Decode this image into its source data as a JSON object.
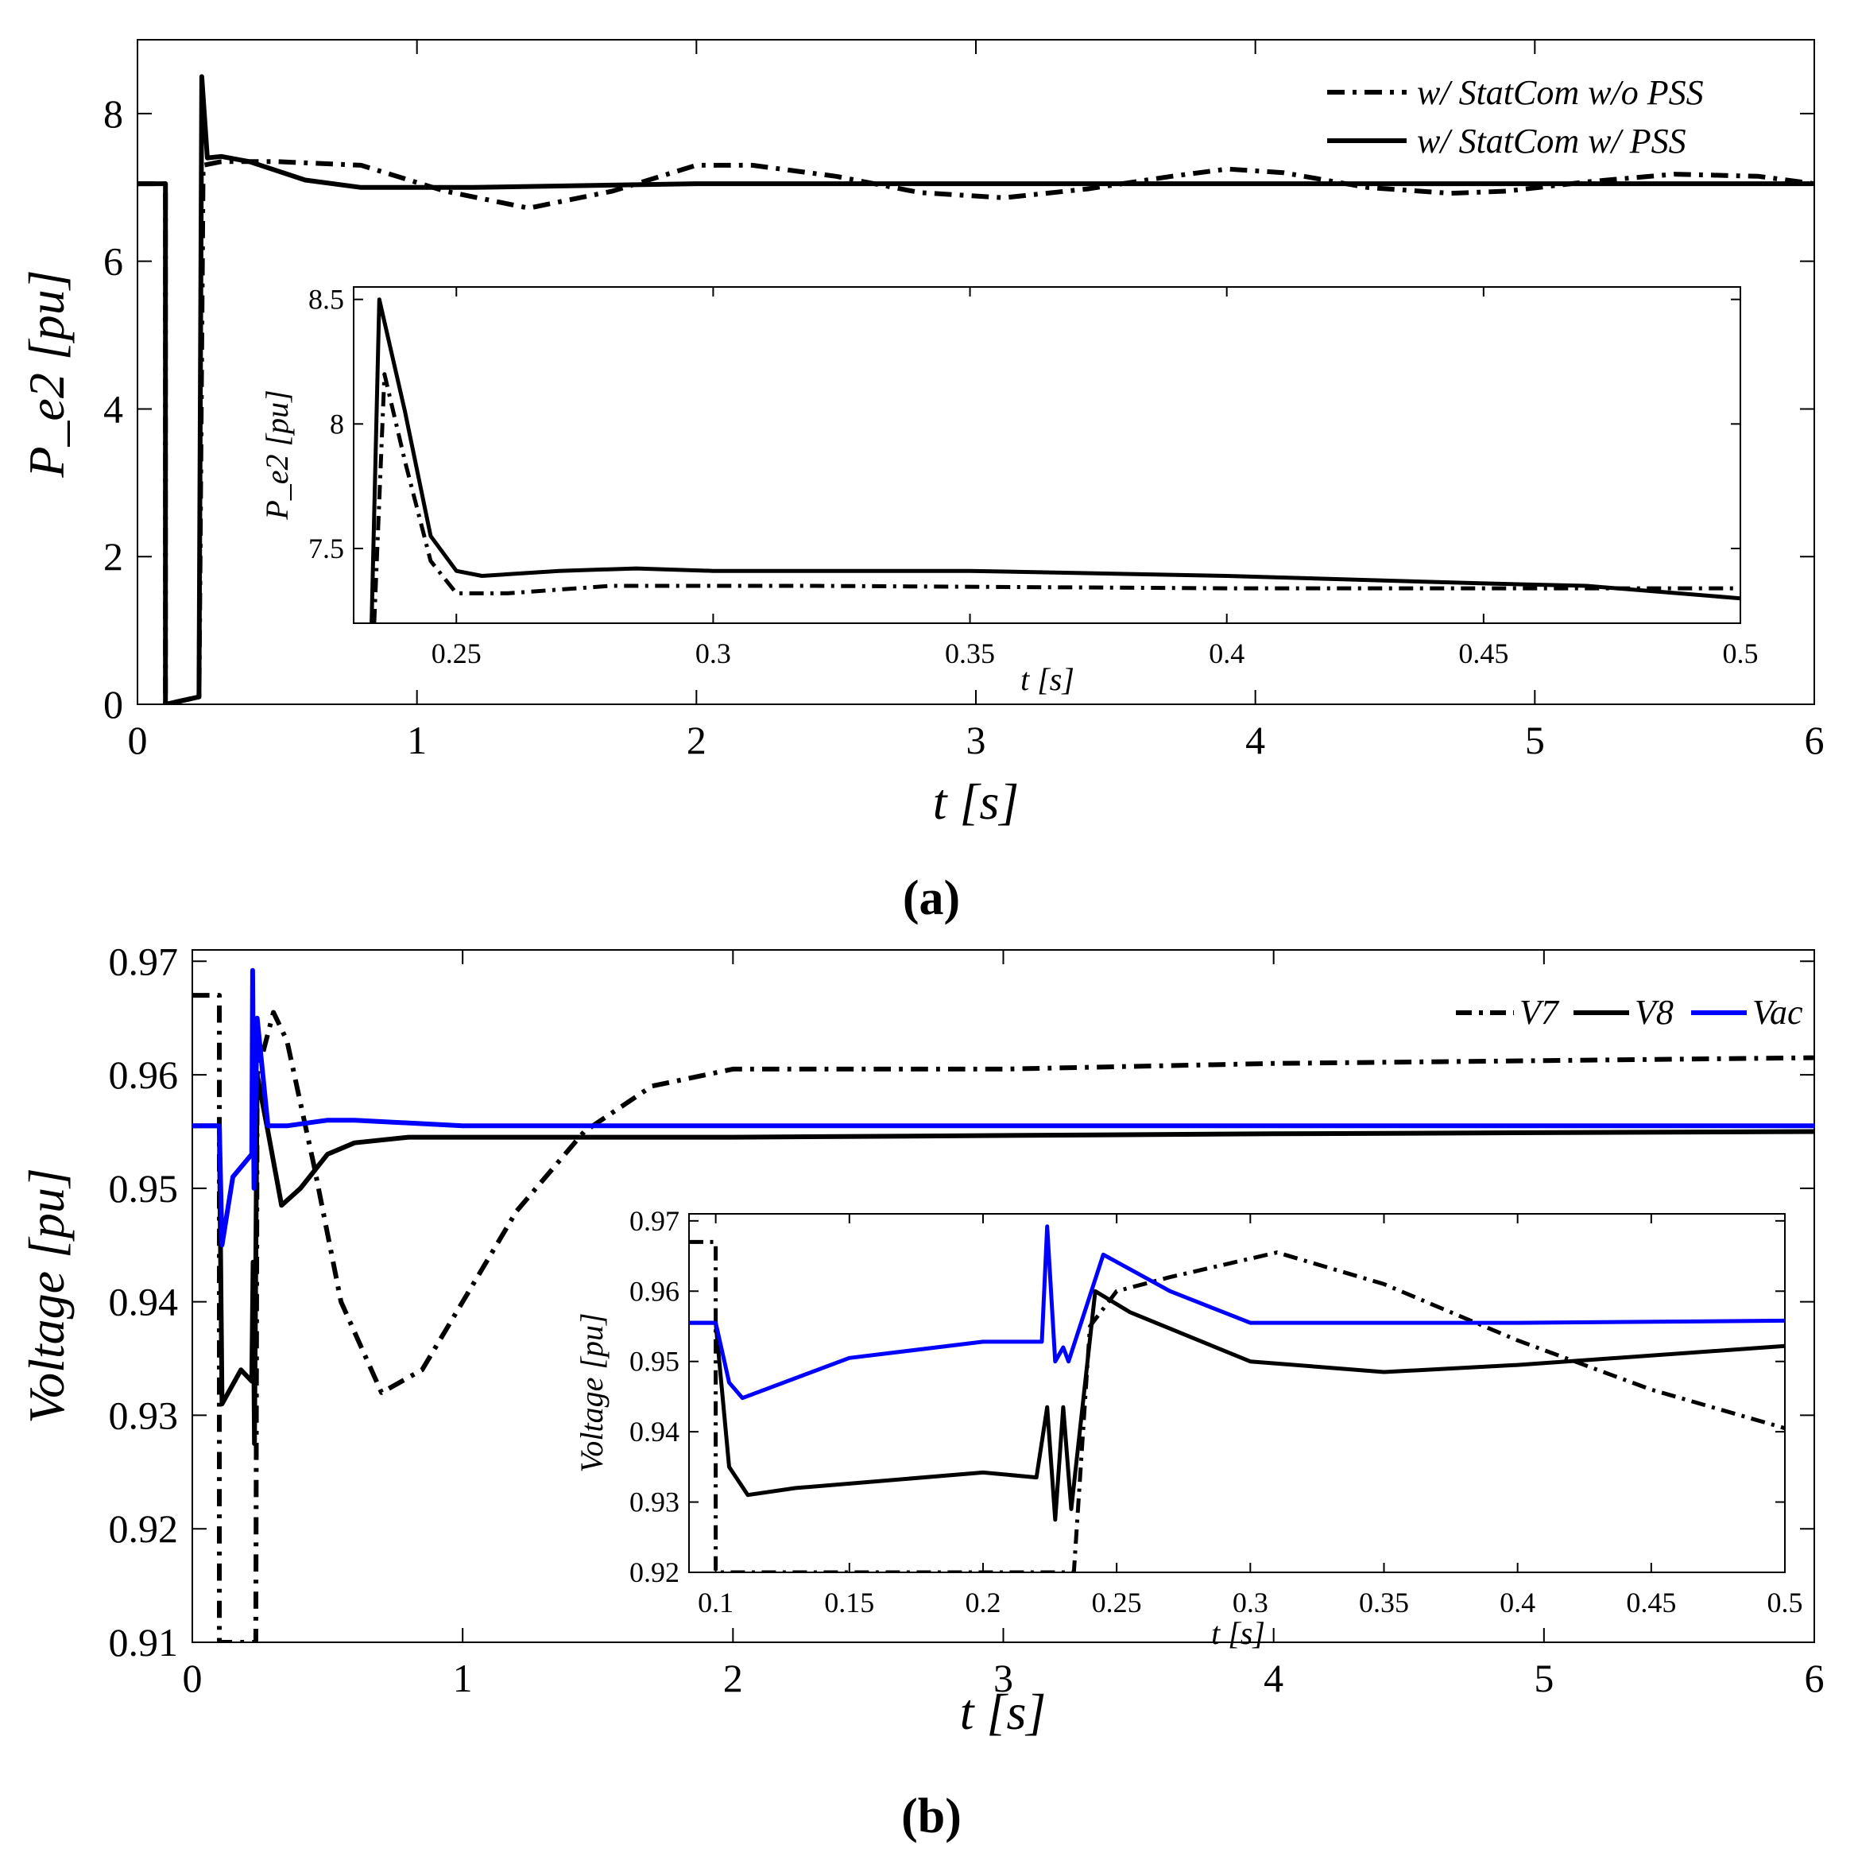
{
  "chart_data": [
    {
      "type": "line",
      "panel_caption": "(a)",
      "xlabel": "t [s]",
      "ylabel": "P_e2 [pu]",
      "xlim": [
        0,
        6
      ],
      "ylim": [
        0,
        9
      ],
      "xticks": [
        "0",
        "1",
        "2",
        "3",
        "4",
        "5",
        "6"
      ],
      "yticks": [
        "0",
        "2",
        "4",
        "6",
        "8"
      ],
      "legend": [
        "w/ StatCom w/o PSS",
        "w/ StatCom w/ PSS"
      ],
      "series": [
        {
          "name": "w/ StatCom w/o PSS",
          "style": "dashdot",
          "color": "#000000",
          "points": [
            [
              0,
              7.05
            ],
            [
              0.1,
              7.05
            ],
            [
              0.1,
              0
            ],
            [
              0.22,
              0.1
            ],
            [
              0.235,
              7.3
            ],
            [
              0.3,
              7.35
            ],
            [
              0.5,
              7.35
            ],
            [
              0.8,
              7.3
            ],
            [
              1.1,
              6.95
            ],
            [
              1.4,
              6.72
            ],
            [
              1.7,
              6.95
            ],
            [
              2.0,
              7.3
            ],
            [
              2.2,
              7.3
            ],
            [
              2.5,
              7.15
            ],
            [
              2.8,
              6.93
            ],
            [
              3.1,
              6.86
            ],
            [
              3.4,
              6.98
            ],
            [
              3.7,
              7.15
            ],
            [
              3.9,
              7.25
            ],
            [
              4.1,
              7.2
            ],
            [
              4.4,
              7.0
            ],
            [
              4.7,
              6.92
            ],
            [
              4.9,
              6.95
            ],
            [
              5.2,
              7.08
            ],
            [
              5.5,
              7.18
            ],
            [
              5.8,
              7.15
            ],
            [
              6.0,
              7.05
            ]
          ]
        },
        {
          "name": "w/ StatCom w/ PSS",
          "style": "solid",
          "color": "#000000",
          "points": [
            [
              0,
              7.05
            ],
            [
              0.1,
              7.05
            ],
            [
              0.1,
              0
            ],
            [
              0.22,
              0.1
            ],
            [
              0.23,
              8.5
            ],
            [
              0.25,
              7.4
            ],
            [
              0.3,
              7.42
            ],
            [
              0.4,
              7.35
            ],
            [
              0.6,
              7.1
            ],
            [
              0.8,
              7.0
            ],
            [
              1.2,
              7.0
            ],
            [
              2.0,
              7.05
            ],
            [
              6.0,
              7.05
            ]
          ]
        }
      ],
      "inset": {
        "xlabel": "t [s]",
        "ylabel": "P_e2 [pu]",
        "xlim": [
          0.23,
          0.5
        ],
        "ylim": [
          7.2,
          8.55
        ],
        "xticks": [
          "0.25",
          "0.3",
          "0.35",
          "0.4",
          "0.45",
          "0.5"
        ],
        "yticks": [
          "7.5",
          "8",
          "8.5"
        ],
        "series": [
          {
            "name": "w/ StatCom w/o PSS",
            "style": "dashdot",
            "color": "#000000",
            "points": [
              [
                0.234,
                7.2
              ],
              [
                0.236,
                8.2
              ],
              [
                0.24,
                7.85
              ],
              [
                0.245,
                7.45
              ],
              [
                0.25,
                7.32
              ],
              [
                0.26,
                7.32
              ],
              [
                0.28,
                7.35
              ],
              [
                0.32,
                7.35
              ],
              [
                0.4,
                7.34
              ],
              [
                0.5,
                7.34
              ]
            ]
          },
          {
            "name": "w/ StatCom w/ PSS",
            "style": "solid",
            "color": "#000000",
            "points": [
              [
                0.2335,
                7.2
              ],
              [
                0.235,
                8.5
              ],
              [
                0.24,
                8.05
              ],
              [
                0.245,
                7.55
              ],
              [
                0.25,
                7.41
              ],
              [
                0.255,
                7.39
              ],
              [
                0.27,
                7.41
              ],
              [
                0.285,
                7.42
              ],
              [
                0.3,
                7.41
              ],
              [
                0.35,
                7.41
              ],
              [
                0.4,
                7.39
              ],
              [
                0.45,
                7.36
              ],
              [
                0.47,
                7.35
              ],
              [
                0.5,
                7.3
              ]
            ]
          }
        ]
      }
    },
    {
      "type": "line",
      "panel_caption": "(b)",
      "xlabel": "t [s]",
      "ylabel": "Voltage [pu]",
      "xlim": [
        0,
        6
      ],
      "ylim": [
        0.91,
        0.971
      ],
      "xticks": [
        "0",
        "1",
        "2",
        "3",
        "4",
        "5",
        "6"
      ],
      "yticks": [
        "0.91",
        "0.92",
        "0.93",
        "0.94",
        "0.95",
        "0.96",
        "0.97"
      ],
      "legend": [
        "V7",
        "V8",
        "Vac"
      ],
      "series": [
        {
          "name": "V7",
          "style": "dashdot",
          "color": "#000000",
          "points": [
            [
              0,
              0.967
            ],
            [
              0.1,
              0.967
            ],
            [
              0.1,
              0.91
            ],
            [
              0.235,
              0.91
            ],
            [
              0.24,
              0.96
            ],
            [
              0.3,
              0.9655
            ],
            [
              0.35,
              0.963
            ],
            [
              0.45,
              0.952
            ],
            [
              0.55,
              0.94
            ],
            [
              0.7,
              0.932
            ],
            [
              0.85,
              0.934
            ],
            [
              1.0,
              0.94
            ],
            [
              1.2,
              0.948
            ],
            [
              1.45,
              0.955
            ],
            [
              1.7,
              0.959
            ],
            [
              2.0,
              0.9605
            ],
            [
              3.0,
              0.9605
            ],
            [
              4.0,
              0.961
            ],
            [
              6.0,
              0.9615
            ]
          ]
        },
        {
          "name": "V8",
          "style": "solid",
          "color": "#000000",
          "points": [
            [
              0,
              0.9555
            ],
            [
              0.1,
              0.9555
            ],
            [
              0.11,
              0.931
            ],
            [
              0.18,
              0.934
            ],
            [
              0.22,
              0.933
            ],
            [
              0.225,
              0.9435
            ],
            [
              0.23,
              0.9275
            ],
            [
              0.24,
              0.96
            ],
            [
              0.28,
              0.955
            ],
            [
              0.33,
              0.9485
            ],
            [
              0.4,
              0.95
            ],
            [
              0.5,
              0.953
            ],
            [
              0.6,
              0.954
            ],
            [
              0.8,
              0.9545
            ],
            [
              1.0,
              0.9545
            ],
            [
              2.0,
              0.9545
            ],
            [
              4.0,
              0.9548
            ],
            [
              6.0,
              0.955
            ]
          ]
        },
        {
          "name": "Vac",
          "style": "solid",
          "color": "#0000ff",
          "points": [
            [
              0,
              0.9555
            ],
            [
              0.1,
              0.9555
            ],
            [
              0.11,
              0.945
            ],
            [
              0.15,
              0.951
            ],
            [
              0.22,
              0.953
            ],
            [
              0.223,
              0.9692
            ],
            [
              0.228,
              0.95
            ],
            [
              0.24,
              0.965
            ],
            [
              0.28,
              0.9555
            ],
            [
              0.35,
              0.9555
            ],
            [
              0.5,
              0.956
            ],
            [
              0.6,
              0.956
            ],
            [
              1.0,
              0.9555
            ],
            [
              6.0,
              0.9555
            ]
          ]
        }
      ],
      "inset": {
        "xlabel": "t [s]",
        "ylabel": "Voltage [pu]",
        "xlim": [
          0.09,
          0.5
        ],
        "ylim": [
          0.92,
          0.971
        ],
        "xticks": [
          "0.1",
          "0.15",
          "0.2",
          "0.25",
          "0.3",
          "0.35",
          "0.4",
          "0.45",
          "0.5"
        ],
        "yticks": [
          "0.92",
          "0.93",
          "0.94",
          "0.95",
          "0.96",
          "0.97"
        ],
        "series": [
          {
            "name": "V7",
            "style": "dashdot",
            "color": "#000000",
            "points": [
              [
                0.09,
                0.967
              ],
              [
                0.1,
                0.967
              ],
              [
                0.1,
                0.92
              ],
              [
                0.234,
                0.92
              ],
              [
                0.24,
                0.955
              ],
              [
                0.25,
                0.96
              ],
              [
                0.27,
                0.962
              ],
              [
                0.31,
                0.9655
              ],
              [
                0.35,
                0.961
              ],
              [
                0.4,
                0.953
              ],
              [
                0.45,
                0.946
              ],
              [
                0.5,
                0.9405
              ]
            ]
          },
          {
            "name": "V8",
            "style": "solid",
            "color": "#000000",
            "points": [
              [
                0.09,
                0.9555
              ],
              [
                0.1,
                0.9555
              ],
              [
                0.105,
                0.935
              ],
              [
                0.112,
                0.931
              ],
              [
                0.13,
                0.932
              ],
              [
                0.2,
                0.9342
              ],
              [
                0.22,
                0.9335
              ],
              [
                0.224,
                0.9435
              ],
              [
                0.227,
                0.9275
              ],
              [
                0.23,
                0.9435
              ],
              [
                0.233,
                0.929
              ],
              [
                0.242,
                0.96
              ],
              [
                0.255,
                0.957
              ],
              [
                0.3,
                0.95
              ],
              [
                0.35,
                0.9485
              ],
              [
                0.4,
                0.9495
              ],
              [
                0.5,
                0.9522
              ]
            ]
          },
          {
            "name": "Vac",
            "style": "solid",
            "color": "#0000ff",
            "points": [
              [
                0.09,
                0.9555
              ],
              [
                0.1,
                0.9555
              ],
              [
                0.105,
                0.947
              ],
              [
                0.11,
                0.9448
              ],
              [
                0.15,
                0.9505
              ],
              [
                0.2,
                0.9528
              ],
              [
                0.222,
                0.9528
              ],
              [
                0.224,
                0.9692
              ],
              [
                0.227,
                0.95
              ],
              [
                0.23,
                0.952
              ],
              [
                0.232,
                0.95
              ],
              [
                0.245,
                0.9652
              ],
              [
                0.27,
                0.96
              ],
              [
                0.3,
                0.9555
              ],
              [
                0.4,
                0.9555
              ],
              [
                0.5,
                0.9558
              ]
            ]
          }
        ]
      }
    }
  ]
}
